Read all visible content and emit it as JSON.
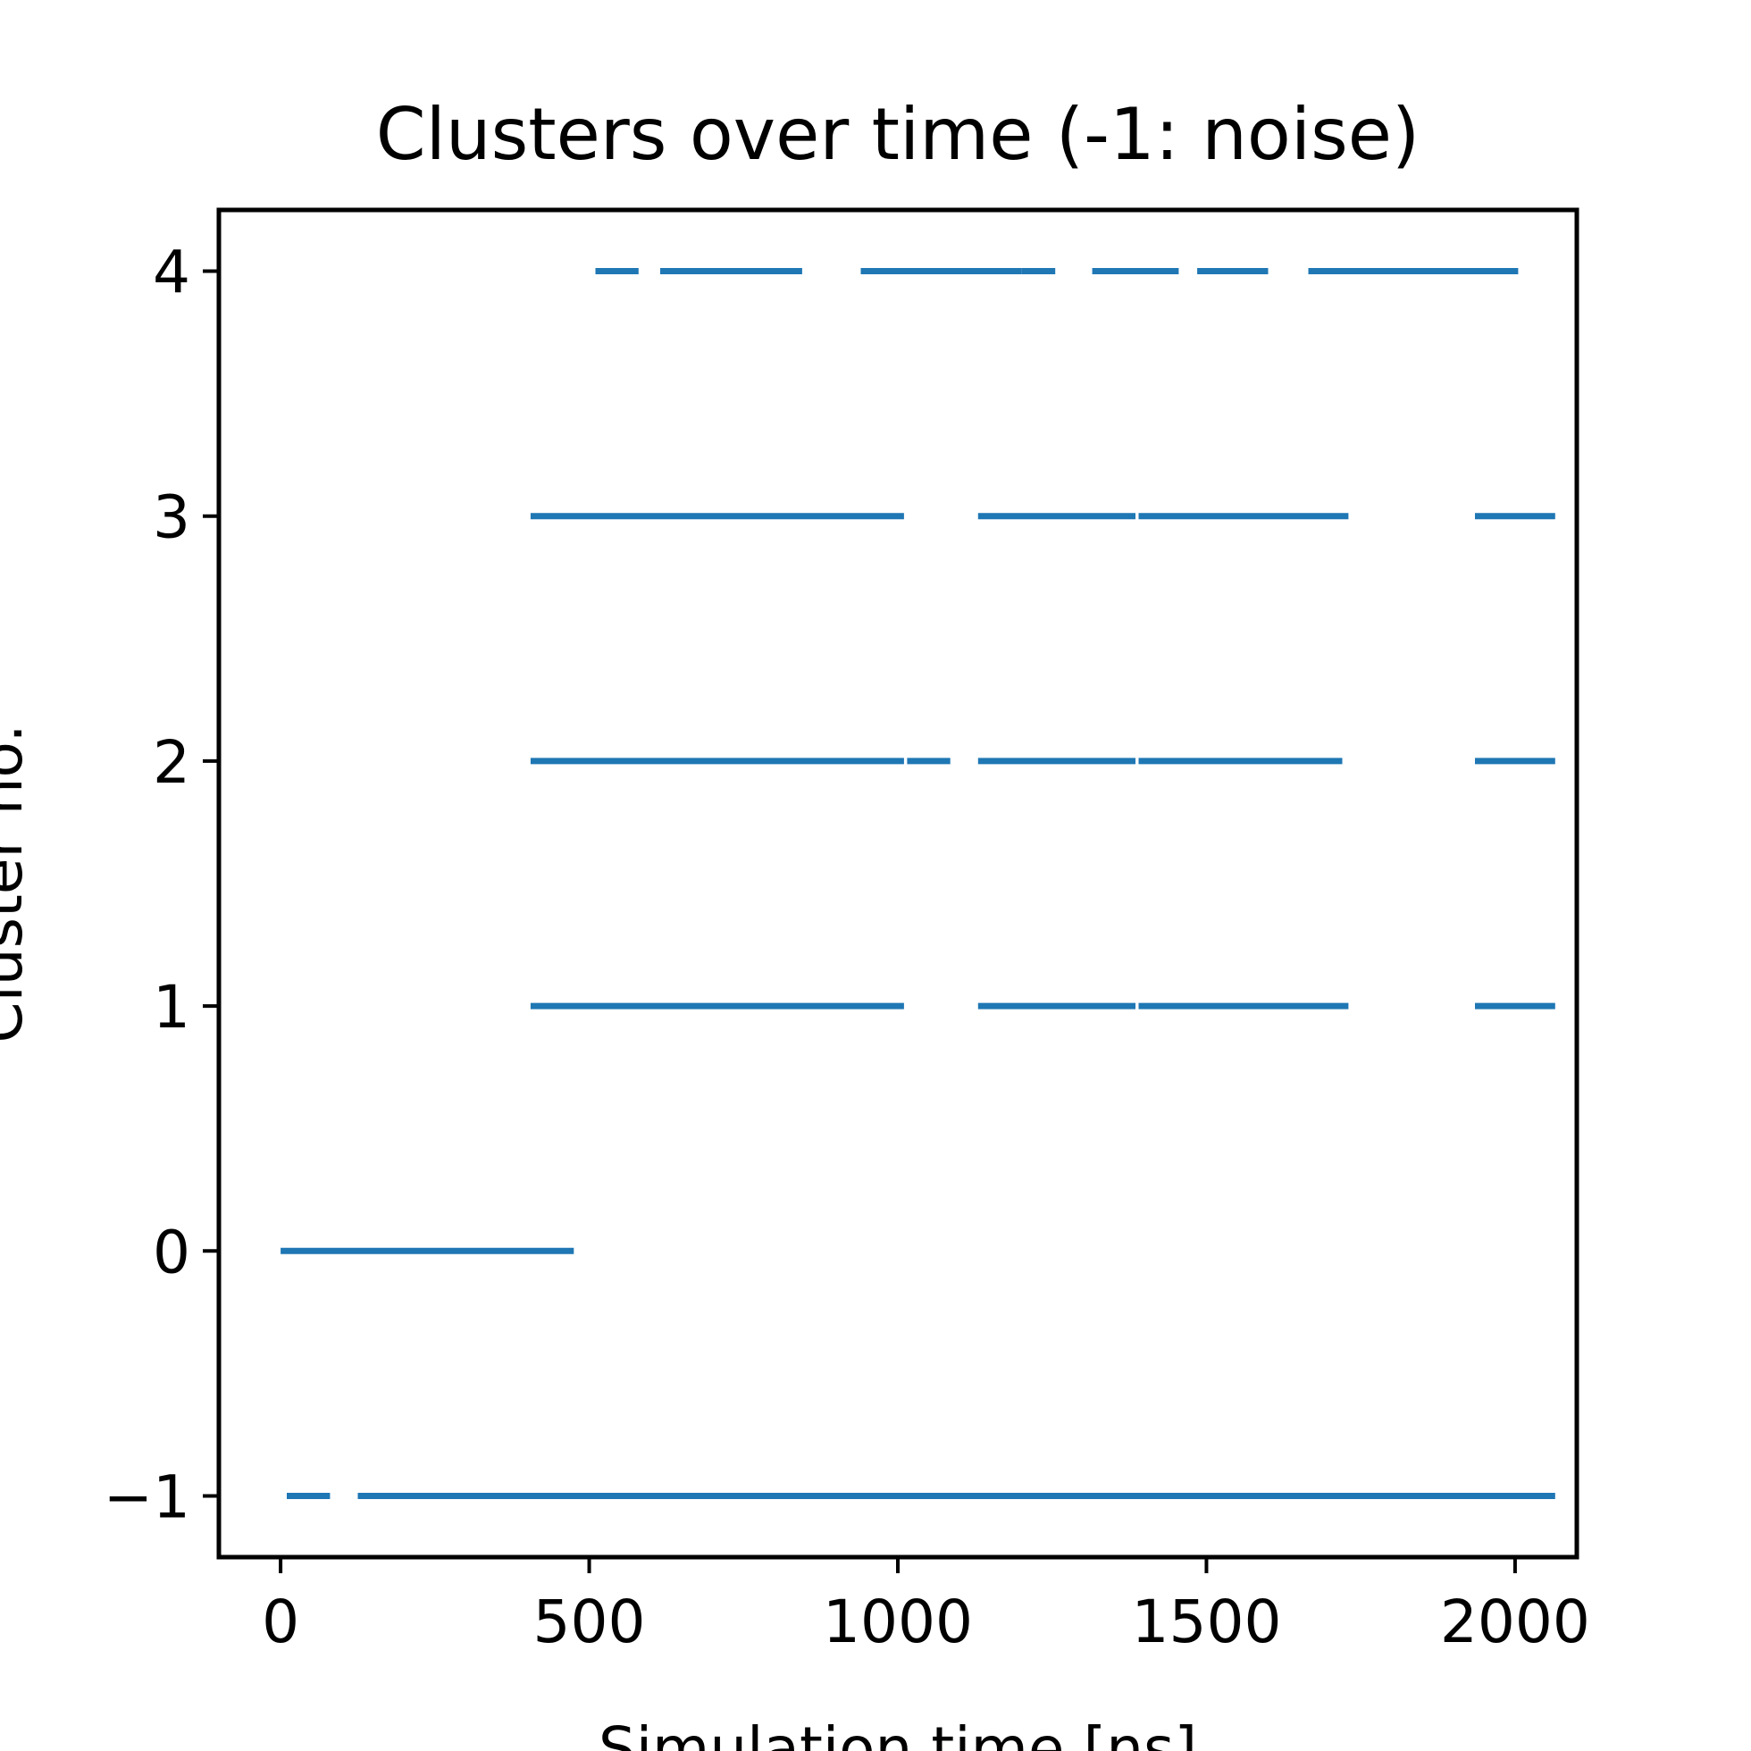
{
  "chart_data": {
    "type": "line",
    "title": "Clusters over time (-1: noise)",
    "xlabel": "Simulation time [ns]",
    "ylabel": "Cluster no.",
    "xlim": [
      -100,
      2100
    ],
    "ylim": [
      -1.25,
      4.25
    ],
    "x_ticks": [
      0,
      500,
      1000,
      1500,
      2000
    ],
    "x_tick_labels": [
      "0",
      "500",
      "1000",
      "1500",
      "2000"
    ],
    "y_ticks": [
      -1,
      0,
      1,
      2,
      3,
      4
    ],
    "y_tick_labels": [
      "−1",
      "0",
      "1",
      "2",
      "3",
      "4"
    ],
    "grid": false,
    "legend": null,
    "color": "#1f77b4",
    "series": [
      {
        "cluster": -1,
        "segments": [
          [
            10,
            80
          ],
          [
            125,
            2065
          ]
        ]
      },
      {
        "cluster": 0,
        "segments": [
          [
            0,
            475
          ]
        ]
      },
      {
        "cluster": 1,
        "segments": [
          [
            405,
            1010
          ],
          [
            1130,
            1385
          ],
          [
            1390,
            1730
          ],
          [
            1935,
            2065
          ]
        ]
      },
      {
        "cluster": 2,
        "segments": [
          [
            405,
            1010
          ],
          [
            1015,
            1085
          ],
          [
            1130,
            1385
          ],
          [
            1390,
            1720
          ],
          [
            1935,
            2065
          ]
        ]
      },
      {
        "cluster": 3,
        "segments": [
          [
            405,
            1010
          ],
          [
            1130,
            1385
          ],
          [
            1390,
            1730
          ],
          [
            1935,
            2065
          ]
        ]
      },
      {
        "cluster": 4,
        "segments": [
          [
            510,
            580
          ],
          [
            615,
            845
          ],
          [
            940,
            1200
          ],
          [
            1200,
            1255
          ],
          [
            1315,
            1455
          ],
          [
            1485,
            1600
          ],
          [
            1665,
            2005
          ]
        ]
      }
    ]
  }
}
